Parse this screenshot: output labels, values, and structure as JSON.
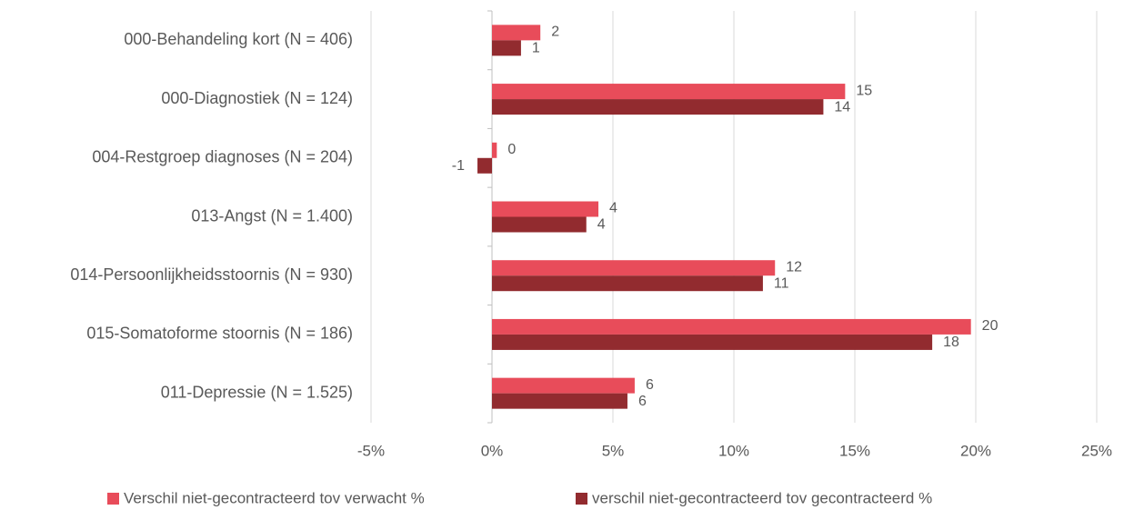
{
  "chart_data": {
    "type": "hbar",
    "categories": [
      "000-Behandeling kort (N = 406)",
      "000-Diagnostiek (N = 124)",
      "004-Restgroep diagnoses (N = 204)",
      "013-Angst (N = 1.400)",
      "014-Persoonlijkheidsstoornis (N = 930)",
      "015-Somatoforme stoornis (N = 186)",
      "011-Depressie (N = 1.525)"
    ],
    "series": [
      {
        "name": "Verschil niet-gecontracteerd tov verwacht %",
        "color": "#e84c5a",
        "values": [
          2.0,
          14.6,
          0.2,
          4.4,
          11.7,
          19.8,
          5.9
        ],
        "value_labels": [
          "2",
          "15",
          "0",
          "4",
          "12",
          "20",
          "6"
        ]
      },
      {
        "name": "verschil niet-gecontracteerd tov gecontracteerd %",
        "color": "#922b2f",
        "values": [
          1.2,
          13.7,
          -0.6,
          3.9,
          11.2,
          18.2,
          5.6
        ],
        "value_labels": [
          "1",
          "14",
          "-1",
          "4",
          "11",
          "18",
          "6"
        ]
      }
    ],
    "xlim": [
      -5,
      25
    ],
    "xticks": [
      {
        "value": -5,
        "label": "-5%"
      },
      {
        "value": 0,
        "label": "0%"
      },
      {
        "value": 5,
        "label": "5%"
      },
      {
        "value": 10,
        "label": "10%"
      },
      {
        "value": 15,
        "label": "15%"
      },
      {
        "value": 20,
        "label": "20%"
      },
      {
        "value": 25,
        "label": "25%"
      }
    ],
    "grid": true,
    "legend": "bottom"
  }
}
